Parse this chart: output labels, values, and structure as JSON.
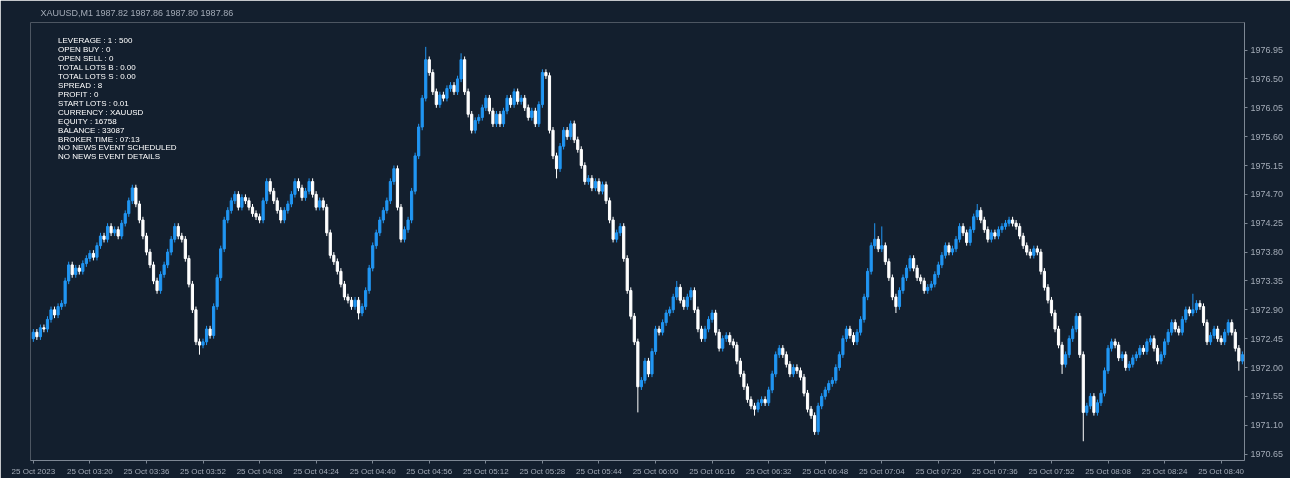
{
  "chart_data": {
    "type": "candlestick",
    "title": "XAUUSD,M1  1987.82 1987.86 1987.80 1987.86",
    "ylim": [
      1970.55,
      1977.38
    ],
    "yticks": [
      1970.65,
      {
        "value": 1971.1,
        "label": "1971.10"
      },
      1971.55,
      {
        "value": 1972.0,
        "label": "1972.00"
      },
      1972.45,
      {
        "value": 1972.9,
        "label": "1972.90"
      },
      1973.35,
      {
        "value": 1973.8,
        "label": "1973.80"
      },
      1974.25,
      {
        "value": 1974.7,
        "label": "1974.70"
      },
      1975.15,
      {
        "value": 1975.6,
        "label": "1975.60"
      },
      1976.05,
      {
        "value": 1976.5,
        "label": "1976.50"
      },
      1976.95
    ],
    "annotations": [
      "LEVERAGE : 1 : 500",
      "OPEN BUY : 0",
      "OPEN SELL : 0",
      "TOTAL LOTS B : 0.00",
      "TOTAL LOTS S : 0.00",
      "SPREAD : 8",
      "PROFIT : 0",
      "START LOTS : 0.01",
      "CURRENCY : XAUUSD",
      "EQUITY : 16758",
      "BALANCE : 33087",
      "BROKER TIME : 07:13",
      "NO NEWS EVENT SCHEDULED",
      "NO NEWS EVENT DETAILS"
    ],
    "categories": [
      "25 Oct 2023",
      null,
      null,
      null,
      null,
      null,
      null,
      null,
      null,
      null,
      null,
      null,
      null,
      null,
      null,
      null,
      "25 Oct 03:20",
      null,
      null,
      null,
      null,
      null,
      null,
      null,
      null,
      null,
      null,
      null,
      null,
      null,
      null,
      null,
      "25 Oct 03:36",
      null,
      null,
      null,
      null,
      null,
      null,
      null,
      null,
      null,
      null,
      null,
      null,
      null,
      null,
      null,
      "25 Oct 03:52",
      null,
      null,
      null,
      null,
      null,
      null,
      null,
      null,
      null,
      null,
      null,
      null,
      null,
      null,
      null,
      "25 Oct 04:08",
      null,
      null,
      null,
      null,
      null,
      null,
      null,
      null,
      null,
      null,
      null,
      null,
      null,
      null,
      null,
      "25 Oct 04:24",
      null,
      null,
      null,
      null,
      null,
      null,
      null,
      null,
      null,
      null,
      null,
      null,
      null,
      null,
      null,
      "25 Oct 04:40",
      null,
      null,
      null,
      null,
      null,
      null,
      null,
      null,
      null,
      null,
      null,
      null,
      null,
      null,
      null,
      "25 Oct 04:56",
      null,
      null,
      null,
      null,
      null,
      null,
      null,
      null,
      null,
      null,
      null,
      null,
      null,
      null,
      null,
      "25 Oct 05:12",
      null,
      null,
      null,
      null,
      null,
      null,
      null,
      null,
      null,
      null,
      null,
      null,
      null,
      null,
      null,
      "25 Oct 05:28",
      null,
      null,
      null,
      null,
      null,
      null,
      null,
      null,
      null,
      null,
      null,
      null,
      null,
      null,
      null,
      "25 Oct 05:44",
      null,
      null,
      null,
      null,
      null,
      null,
      null,
      null,
      null,
      null,
      null,
      null,
      null,
      null,
      null,
      "25 Oct 06:00",
      null,
      null,
      null,
      null,
      null,
      null,
      null,
      null,
      null,
      null,
      null,
      null,
      null,
      null,
      null,
      "25 Oct 06:16",
      null,
      null,
      null,
      null,
      null,
      null,
      null,
      null,
      null,
      null,
      null,
      null,
      null,
      null,
      null,
      "25 Oct 06:32",
      null,
      null,
      null,
      null,
      null,
      null,
      null,
      null,
      null,
      null,
      null,
      null,
      null,
      null,
      null,
      "25 Oct 06:48",
      null,
      null,
      null,
      null,
      null,
      null,
      null,
      null,
      null,
      null,
      null,
      null,
      null,
      null,
      null,
      "25 Oct 07:04",
      null,
      null,
      null,
      null,
      null,
      null,
      null,
      null,
      null,
      null,
      null,
      null,
      null,
      null,
      null,
      "25 Oct 07:20",
      null,
      null,
      null,
      null,
      null,
      null,
      null,
      null,
      null,
      null,
      null,
      null,
      null,
      null,
      null,
      "25 Oct 07:36",
      null,
      null,
      null,
      null,
      null,
      null,
      null,
      null,
      null,
      null,
      null,
      null,
      null,
      null,
      null,
      "25 Oct 07:52",
      null,
      null,
      null,
      null,
      null,
      null,
      null,
      null,
      null,
      null,
      null,
      null,
      null,
      null,
      null,
      "25 Oct 08:08",
      null,
      null,
      null,
      null,
      null,
      null,
      null,
      null,
      null,
      null,
      null,
      null,
      null,
      null,
      null,
      "25 Oct 08:24",
      null,
      null,
      null,
      null,
      null,
      null,
      null,
      null,
      null,
      null,
      null,
      null,
      null,
      null,
      null,
      "25 Oct 08:40",
      null,
      null,
      null,
      null,
      null,
      null
    ],
    "ohlc": [
      [
        1972.45,
        1972.6,
        1972.4,
        1972.55
      ],
      [
        1972.55,
        1972.6,
        1972.43,
        1972.48
      ],
      [
        1972.48,
        1972.67,
        1972.43,
        1972.62
      ],
      [
        1972.62,
        1972.67,
        1972.55,
        1972.6
      ],
      [
        1972.6,
        1972.8,
        1972.55,
        1972.75
      ],
      [
        1972.75,
        1972.95,
        1972.7,
        1972.9
      ],
      [
        1972.9,
        1972.95,
        1972.77,
        1972.82
      ],
      [
        1972.82,
        1973.0,
        1972.77,
        1972.95
      ],
      [
        1972.95,
        1973.05,
        1972.9,
        1973.0
      ],
      [
        1973.0,
        1973.4,
        1972.95,
        1973.35
      ],
      [
        1973.35,
        1973.65,
        1973.3,
        1973.6
      ],
      [
        1973.6,
        1973.65,
        1973.4,
        1973.45
      ],
      [
        1973.45,
        1973.6,
        1973.4,
        1973.55
      ],
      [
        1973.55,
        1973.6,
        1973.45,
        1973.5
      ],
      [
        1973.5,
        1973.67,
        1973.45,
        1973.62
      ],
      [
        1973.62,
        1973.75,
        1973.57,
        1973.7
      ],
      [
        1973.7,
        1973.83,
        1973.65,
        1973.78
      ],
      [
        1973.78,
        1973.83,
        1973.67,
        1973.72
      ],
      [
        1973.72,
        1973.95,
        1973.67,
        1973.9
      ],
      [
        1973.9,
        1974.1,
        1973.85,
        1974.05
      ],
      [
        1974.05,
        1974.1,
        1973.95,
        1974.0
      ],
      [
        1974.0,
        1974.25,
        1973.95,
        1974.2
      ],
      [
        1974.2,
        1974.25,
        1974.05,
        1974.1
      ],
      [
        1974.1,
        1974.2,
        1974.05,
        1974.15
      ],
      [
        1974.15,
        1974.2,
        1974.0,
        1974.05
      ],
      [
        1974.05,
        1974.3,
        1974.0,
        1974.25
      ],
      [
        1974.25,
        1974.45,
        1974.2,
        1974.4
      ],
      [
        1974.4,
        1974.65,
        1974.35,
        1974.6
      ],
      [
        1974.6,
        1974.85,
        1974.55,
        1974.8
      ],
      [
        1974.8,
        1974.85,
        1974.5,
        1974.55
      ],
      [
        1974.55,
        1974.6,
        1974.25,
        1974.3
      ],
      [
        1974.3,
        1974.35,
        1974.0,
        1974.05
      ],
      [
        1974.05,
        1974.1,
        1973.75,
        1973.8
      ],
      [
        1973.8,
        1973.85,
        1973.55,
        1973.6
      ],
      [
        1973.6,
        1973.65,
        1973.3,
        1973.35
      ],
      [
        1973.35,
        1973.4,
        1973.15,
        1973.2
      ],
      [
        1973.2,
        1973.5,
        1973.15,
        1973.45
      ],
      [
        1973.45,
        1973.65,
        1973.4,
        1973.6
      ],
      [
        1973.6,
        1973.85,
        1973.55,
        1973.8
      ],
      [
        1973.8,
        1974.05,
        1973.75,
        1974.0
      ],
      [
        1974.0,
        1974.25,
        1973.95,
        1974.2
      ],
      [
        1974.2,
        1974.25,
        1974.0,
        1974.05
      ],
      [
        1974.05,
        1974.1,
        1973.95,
        1974.0
      ],
      [
        1974.0,
        1974.05,
        1973.65,
        1973.7
      ],
      [
        1973.7,
        1973.75,
        1973.25,
        1973.3
      ],
      [
        1973.3,
        1973.35,
        1972.85,
        1972.9
      ],
      [
        1972.9,
        1972.95,
        1972.35,
        1972.4
      ],
      [
        1972.4,
        1972.45,
        1972.2,
        1972.35
      ],
      [
        1972.35,
        1972.45,
        1972.3,
        1972.4
      ],
      [
        1972.4,
        1972.65,
        1972.35,
        1972.6
      ],
      [
        1972.6,
        1972.65,
        1972.45,
        1972.5
      ],
      [
        1972.5,
        1973.0,
        1972.45,
        1972.95
      ],
      [
        1972.95,
        1973.45,
        1972.9,
        1973.4
      ],
      [
        1973.4,
        1973.9,
        1973.35,
        1973.85
      ],
      [
        1973.85,
        1974.35,
        1973.8,
        1974.3
      ],
      [
        1974.3,
        1974.5,
        1974.25,
        1974.45
      ],
      [
        1974.45,
        1974.65,
        1974.4,
        1974.6
      ],
      [
        1974.6,
        1974.75,
        1974.55,
        1974.7
      ],
      [
        1974.7,
        1974.75,
        1974.45,
        1974.5
      ],
      [
        1974.5,
        1974.7,
        1974.45,
        1974.65
      ],
      [
        1974.65,
        1974.7,
        1974.55,
        1974.6
      ],
      [
        1974.6,
        1974.65,
        1974.45,
        1974.5
      ],
      [
        1974.5,
        1974.55,
        1974.35,
        1974.4
      ],
      [
        1974.4,
        1974.45,
        1974.3,
        1974.35
      ],
      [
        1974.35,
        1974.4,
        1974.25,
        1974.3
      ],
      [
        1974.3,
        1974.65,
        1974.25,
        1974.6
      ],
      [
        1974.6,
        1974.95,
        1974.55,
        1974.9
      ],
      [
        1974.9,
        1974.95,
        1974.7,
        1974.75
      ],
      [
        1974.75,
        1974.8,
        1974.55,
        1974.6
      ],
      [
        1974.6,
        1974.65,
        1974.4,
        1974.45
      ],
      [
        1974.45,
        1974.5,
        1974.25,
        1974.3
      ],
      [
        1974.3,
        1974.5,
        1974.25,
        1974.45
      ],
      [
        1974.45,
        1974.6,
        1974.4,
        1974.55
      ],
      [
        1974.55,
        1974.75,
        1974.5,
        1974.7
      ],
      [
        1974.7,
        1974.95,
        1974.65,
        1974.9
      ],
      [
        1974.9,
        1974.95,
        1974.75,
        1974.8
      ],
      [
        1974.8,
        1974.85,
        1974.6,
        1974.65
      ],
      [
        1974.65,
        1974.8,
        1974.6,
        1974.75
      ],
      [
        1974.75,
        1974.95,
        1974.7,
        1974.9
      ],
      [
        1974.9,
        1974.95,
        1974.65,
        1974.7
      ],
      [
        1974.7,
        1974.75,
        1974.45,
        1974.5
      ],
      [
        1974.5,
        1974.65,
        1974.45,
        1974.6
      ],
      [
        1974.6,
        1974.65,
        1974.45,
        1974.5
      ],
      [
        1974.5,
        1974.55,
        1974.05,
        1974.1
      ],
      [
        1974.1,
        1974.15,
        1973.7,
        1973.75
      ],
      [
        1973.75,
        1973.8,
        1973.6,
        1973.65
      ],
      [
        1973.65,
        1973.7,
        1973.45,
        1973.5
      ],
      [
        1973.5,
        1973.55,
        1973.25,
        1973.3
      ],
      [
        1973.3,
        1973.35,
        1973.05,
        1973.1
      ],
      [
        1973.1,
        1973.15,
        1973.0,
        1973.05
      ],
      [
        1973.05,
        1973.1,
        1972.9,
        1972.95
      ],
      [
        1972.95,
        1973.1,
        1972.9,
        1973.05
      ],
      [
        1973.05,
        1973.1,
        1972.75,
        1972.85
      ],
      [
        1972.85,
        1973.0,
        1972.8,
        1972.95
      ],
      [
        1972.95,
        1973.25,
        1972.9,
        1973.2
      ],
      [
        1973.2,
        1973.6,
        1973.15,
        1973.55
      ],
      [
        1973.55,
        1973.95,
        1973.5,
        1973.9
      ],
      [
        1973.9,
        1974.15,
        1973.85,
        1974.1
      ],
      [
        1974.1,
        1974.35,
        1974.05,
        1974.3
      ],
      [
        1974.3,
        1974.5,
        1974.25,
        1974.45
      ],
      [
        1974.45,
        1974.65,
        1974.4,
        1974.6
      ],
      [
        1974.6,
        1974.95,
        1974.55,
        1974.9
      ],
      [
        1974.9,
        1975.15,
        1974.85,
        1975.1
      ],
      [
        1975.1,
        1975.15,
        1974.45,
        1974.5
      ],
      [
        1974.5,
        1974.55,
        1973.95,
        1974.0
      ],
      [
        1974.0,
        1974.2,
        1973.95,
        1974.15
      ],
      [
        1974.15,
        1974.35,
        1974.1,
        1974.3
      ],
      [
        1974.3,
        1974.8,
        1974.25,
        1974.75
      ],
      [
        1974.75,
        1975.35,
        1974.7,
        1975.3
      ],
      [
        1975.3,
        1975.8,
        1975.25,
        1975.75
      ],
      [
        1975.75,
        1976.25,
        1975.7,
        1976.2
      ],
      [
        1976.2,
        1977.0,
        1976.15,
        1976.8
      ],
      [
        1976.8,
        1976.85,
        1976.55,
        1976.6
      ],
      [
        1976.6,
        1976.65,
        1976.25,
        1976.3
      ],
      [
        1976.3,
        1976.35,
        1976.05,
        1976.1
      ],
      [
        1976.1,
        1976.3,
        1976.05,
        1976.25
      ],
      [
        1976.25,
        1976.3,
        1976.15,
        1976.2
      ],
      [
        1976.2,
        1976.4,
        1976.15,
        1976.35
      ],
      [
        1976.35,
        1976.45,
        1976.3,
        1976.4
      ],
      [
        1976.4,
        1976.45,
        1976.25,
        1976.3
      ],
      [
        1976.3,
        1976.55,
        1976.25,
        1976.5
      ],
      [
        1976.5,
        1976.9,
        1976.45,
        1976.8
      ],
      [
        1976.8,
        1976.85,
        1976.25,
        1976.3
      ],
      [
        1976.3,
        1976.35,
        1975.9,
        1975.95
      ],
      [
        1975.95,
        1976.0,
        1975.65,
        1975.7
      ],
      [
        1975.7,
        1975.9,
        1975.65,
        1975.85
      ],
      [
        1975.85,
        1975.95,
        1975.8,
        1975.9
      ],
      [
        1975.9,
        1976.1,
        1975.85,
        1976.05
      ],
      [
        1976.05,
        1976.25,
        1976.0,
        1976.2
      ],
      [
        1976.2,
        1976.25,
        1975.95,
        1976.0
      ],
      [
        1976.0,
        1976.05,
        1975.75,
        1975.8
      ],
      [
        1975.8,
        1976.0,
        1975.75,
        1975.95
      ],
      [
        1975.95,
        1976.0,
        1975.75,
        1975.8
      ],
      [
        1975.8,
        1976.05,
        1975.75,
        1976.0
      ],
      [
        1976.0,
        1976.25,
        1975.95,
        1976.2
      ],
      [
        1976.2,
        1976.25,
        1976.05,
        1976.1
      ],
      [
        1976.1,
        1976.35,
        1976.05,
        1976.3
      ],
      [
        1976.3,
        1976.35,
        1976.1,
        1976.15
      ],
      [
        1976.15,
        1976.25,
        1976.1,
        1976.2
      ],
      [
        1976.2,
        1976.25,
        1976.0,
        1976.05
      ],
      [
        1976.05,
        1976.1,
        1975.85,
        1975.9
      ],
      [
        1975.9,
        1976.05,
        1975.85,
        1976.0
      ],
      [
        1976.0,
        1976.05,
        1975.75,
        1975.8
      ],
      [
        1975.8,
        1976.15,
        1975.75,
        1976.1
      ],
      [
        1976.1,
        1976.65,
        1976.05,
        1976.6
      ],
      [
        1976.6,
        1976.65,
        1976.5,
        1976.55
      ],
      [
        1976.55,
        1976.6,
        1975.65,
        1975.7
      ],
      [
        1975.7,
        1975.75,
        1975.25,
        1975.3
      ],
      [
        1975.3,
        1975.35,
        1974.95,
        1975.1
      ],
      [
        1975.1,
        1975.5,
        1975.05,
        1975.45
      ],
      [
        1975.45,
        1975.75,
        1975.4,
        1975.7
      ],
      [
        1975.7,
        1975.75,
        1975.55,
        1975.6
      ],
      [
        1975.6,
        1975.85,
        1975.55,
        1975.8
      ],
      [
        1975.8,
        1975.85,
        1975.5,
        1975.55
      ],
      [
        1975.55,
        1975.6,
        1975.35,
        1975.4
      ],
      [
        1975.4,
        1975.45,
        1975.1,
        1975.15
      ],
      [
        1975.15,
        1975.2,
        1974.85,
        1974.9
      ],
      [
        1974.9,
        1975.0,
        1974.85,
        1974.95
      ],
      [
        1974.95,
        1975.0,
        1974.75,
        1974.8
      ],
      [
        1974.8,
        1974.95,
        1974.75,
        1974.9
      ],
      [
        1974.9,
        1974.95,
        1974.7,
        1974.75
      ],
      [
        1974.75,
        1974.9,
        1974.7,
        1974.85
      ],
      [
        1974.85,
        1974.9,
        1974.55,
        1974.6
      ],
      [
        1974.6,
        1974.65,
        1974.25,
        1974.3
      ],
      [
        1974.3,
        1974.35,
        1973.95,
        1974.0
      ],
      [
        1974.0,
        1974.15,
        1973.95,
        1974.1
      ],
      [
        1974.1,
        1974.25,
        1974.05,
        1974.2
      ],
      [
        1974.2,
        1974.25,
        1973.65,
        1973.7
      ],
      [
        1973.7,
        1973.75,
        1973.15,
        1973.2
      ],
      [
        1973.2,
        1973.25,
        1972.75,
        1972.8
      ],
      [
        1972.8,
        1972.85,
        1972.35,
        1972.4
      ],
      [
        1972.4,
        1972.45,
        1971.3,
        1971.7
      ],
      [
        1971.7,
        1971.85,
        1971.65,
        1971.8
      ],
      [
        1971.8,
        1972.15,
        1971.75,
        1972.1
      ],
      [
        1972.1,
        1972.15,
        1971.85,
        1971.9
      ],
      [
        1971.9,
        1972.3,
        1971.85,
        1972.25
      ],
      [
        1972.25,
        1972.65,
        1972.2,
        1972.6
      ],
      [
        1972.6,
        1972.65,
        1972.5,
        1972.55
      ],
      [
        1972.55,
        1972.75,
        1972.5,
        1972.7
      ],
      [
        1972.7,
        1972.9,
        1972.65,
        1972.85
      ],
      [
        1972.85,
        1972.95,
        1972.8,
        1972.9
      ],
      [
        1972.9,
        1973.15,
        1972.85,
        1973.1
      ],
      [
        1973.1,
        1973.35,
        1973.05,
        1973.25
      ],
      [
        1973.25,
        1973.3,
        1973.0,
        1973.05
      ],
      [
        1973.05,
        1973.1,
        1972.9,
        1972.95
      ],
      [
        1972.95,
        1973.15,
        1972.9,
        1973.1
      ],
      [
        1973.1,
        1973.25,
        1973.05,
        1973.2
      ],
      [
        1973.2,
        1973.25,
        1972.85,
        1972.9
      ],
      [
        1972.9,
        1972.95,
        1972.55,
        1972.6
      ],
      [
        1972.6,
        1972.65,
        1972.4,
        1972.45
      ],
      [
        1972.45,
        1972.65,
        1972.4,
        1972.6
      ],
      [
        1972.6,
        1972.8,
        1972.55,
        1972.75
      ],
      [
        1972.75,
        1972.9,
        1972.7,
        1972.85
      ],
      [
        1972.85,
        1972.9,
        1972.5,
        1972.55
      ],
      [
        1972.55,
        1972.6,
        1972.25,
        1972.3
      ],
      [
        1972.3,
        1972.5,
        1972.25,
        1972.45
      ],
      [
        1972.45,
        1972.55,
        1972.4,
        1972.5
      ],
      [
        1972.5,
        1972.55,
        1972.35,
        1972.4
      ],
      [
        1972.4,
        1972.45,
        1972.3,
        1972.35
      ],
      [
        1972.35,
        1972.4,
        1972.05,
        1972.1
      ],
      [
        1972.1,
        1972.15,
        1971.85,
        1971.9
      ],
      [
        1971.9,
        1971.95,
        1971.65,
        1971.7
      ],
      [
        1971.7,
        1971.75,
        1971.45,
        1971.5
      ],
      [
        1971.5,
        1971.55,
        1971.35,
        1971.4
      ],
      [
        1971.4,
        1971.45,
        1971.25,
        1971.35
      ],
      [
        1971.35,
        1971.5,
        1971.3,
        1971.45
      ],
      [
        1971.45,
        1971.55,
        1971.4,
        1971.5
      ],
      [
        1971.5,
        1971.55,
        1971.4,
        1971.45
      ],
      [
        1971.45,
        1971.7,
        1971.4,
        1971.65
      ],
      [
        1971.65,
        1971.95,
        1971.6,
        1971.9
      ],
      [
        1971.9,
        1972.25,
        1971.85,
        1972.2
      ],
      [
        1972.2,
        1972.35,
        1972.15,
        1972.3
      ],
      [
        1972.3,
        1972.35,
        1972.15,
        1972.2
      ],
      [
        1972.2,
        1972.25,
        1972.0,
        1972.05
      ],
      [
        1972.05,
        1972.1,
        1971.85,
        1971.9
      ],
      [
        1971.9,
        1972.05,
        1971.85,
        1972.0
      ],
      [
        1972.0,
        1972.05,
        1971.9,
        1971.95
      ],
      [
        1971.95,
        1972.0,
        1971.8,
        1971.85
      ],
      [
        1971.85,
        1971.9,
        1971.55,
        1971.6
      ],
      [
        1971.6,
        1971.65,
        1971.3,
        1971.35
      ],
      [
        1971.35,
        1971.4,
        1971.2,
        1971.25
      ],
      [
        1971.25,
        1971.3,
        1970.95,
        1971.0
      ],
      [
        1971.0,
        1971.45,
        1970.95,
        1971.4
      ],
      [
        1971.4,
        1971.6,
        1971.35,
        1971.55
      ],
      [
        1971.55,
        1971.7,
        1971.5,
        1971.65
      ],
      [
        1971.65,
        1971.8,
        1971.6,
        1971.75
      ],
      [
        1971.75,
        1971.85,
        1971.7,
        1971.8
      ],
      [
        1971.8,
        1972.05,
        1971.75,
        1972.0
      ],
      [
        1972.0,
        1972.25,
        1971.95,
        1972.2
      ],
      [
        1972.2,
        1972.5,
        1972.15,
        1972.45
      ],
      [
        1972.45,
        1972.65,
        1972.4,
        1972.6
      ],
      [
        1972.6,
        1972.65,
        1972.45,
        1972.5
      ],
      [
        1972.5,
        1972.55,
        1972.35,
        1972.4
      ],
      [
        1972.4,
        1972.6,
        1972.35,
        1972.55
      ],
      [
        1972.55,
        1972.8,
        1972.5,
        1972.75
      ],
      [
        1972.75,
        1973.15,
        1972.7,
        1973.1
      ],
      [
        1973.1,
        1973.55,
        1973.05,
        1973.5
      ],
      [
        1973.5,
        1973.95,
        1973.45,
        1973.9
      ],
      [
        1973.9,
        1974.25,
        1973.85,
        1974.0
      ],
      [
        1974.0,
        1974.05,
        1973.8,
        1973.85
      ],
      [
        1973.85,
        1974.2,
        1973.8,
        1973.9
      ],
      [
        1973.9,
        1973.95,
        1973.6,
        1973.65
      ],
      [
        1973.65,
        1973.7,
        1973.35,
        1973.4
      ],
      [
        1973.4,
        1973.45,
        1973.05,
        1973.1
      ],
      [
        1973.1,
        1973.15,
        1972.85,
        1972.95
      ],
      [
        1972.95,
        1973.25,
        1972.9,
        1973.2
      ],
      [
        1973.2,
        1973.45,
        1973.15,
        1973.4
      ],
      [
        1973.4,
        1973.6,
        1973.35,
        1973.55
      ],
      [
        1973.55,
        1973.75,
        1973.5,
        1973.7
      ],
      [
        1973.7,
        1973.75,
        1973.5,
        1973.55
      ],
      [
        1973.55,
        1973.6,
        1973.35,
        1973.4
      ],
      [
        1973.4,
        1973.45,
        1973.3,
        1973.35
      ],
      [
        1973.35,
        1973.4,
        1973.15,
        1973.2
      ],
      [
        1973.2,
        1973.3,
        1973.15,
        1973.25
      ],
      [
        1973.25,
        1973.35,
        1973.2,
        1973.3
      ],
      [
        1973.3,
        1973.5,
        1973.25,
        1973.45
      ],
      [
        1973.45,
        1973.65,
        1973.4,
        1973.6
      ],
      [
        1973.6,
        1973.8,
        1973.55,
        1973.75
      ],
      [
        1973.75,
        1973.95,
        1973.7,
        1973.9
      ],
      [
        1973.9,
        1973.95,
        1973.75,
        1973.8
      ],
      [
        1973.8,
        1973.9,
        1973.75,
        1973.85
      ],
      [
        1973.85,
        1974.05,
        1973.8,
        1974.0
      ],
      [
        1974.0,
        1974.25,
        1973.95,
        1974.2
      ],
      [
        1974.2,
        1974.25,
        1974.05,
        1974.1
      ],
      [
        1974.1,
        1974.15,
        1973.9,
        1973.95
      ],
      [
        1973.95,
        1974.2,
        1973.9,
        1974.15
      ],
      [
        1974.15,
        1974.4,
        1974.1,
        1974.35
      ],
      [
        1974.35,
        1974.55,
        1974.3,
        1974.45
      ],
      [
        1974.45,
        1974.5,
        1974.25,
        1974.3
      ],
      [
        1974.3,
        1974.35,
        1974.1,
        1974.15
      ],
      [
        1974.15,
        1974.2,
        1973.95,
        1974.0
      ],
      [
        1974.0,
        1974.15,
        1973.95,
        1974.1
      ],
      [
        1974.1,
        1974.15,
        1974.0,
        1974.05
      ],
      [
        1974.05,
        1974.2,
        1974.0,
        1974.15
      ],
      [
        1974.15,
        1974.25,
        1974.1,
        1974.2
      ],
      [
        1974.2,
        1974.3,
        1974.15,
        1974.25
      ],
      [
        1974.25,
        1974.35,
        1974.2,
        1974.3
      ],
      [
        1974.3,
        1974.35,
        1974.2,
        1974.25
      ],
      [
        1974.25,
        1974.3,
        1974.15,
        1974.2
      ],
      [
        1974.2,
        1974.25,
        1974.0,
        1974.05
      ],
      [
        1974.05,
        1974.1,
        1973.85,
        1973.9
      ],
      [
        1973.9,
        1973.95,
        1973.75,
        1973.8
      ],
      [
        1973.8,
        1973.85,
        1973.7,
        1973.75
      ],
      [
        1973.75,
        1973.9,
        1973.7,
        1973.85
      ],
      [
        1973.85,
        1973.9,
        1973.75,
        1973.8
      ],
      [
        1973.8,
        1973.85,
        1973.45,
        1973.5
      ],
      [
        1973.5,
        1973.55,
        1973.2,
        1973.25
      ],
      [
        1973.25,
        1973.3,
        1973.0,
        1973.05
      ],
      [
        1973.05,
        1973.1,
        1972.8,
        1972.85
      ],
      [
        1972.85,
        1972.9,
        1972.55,
        1972.6
      ],
      [
        1972.6,
        1972.65,
        1972.3,
        1972.35
      ],
      [
        1972.35,
        1972.4,
        1971.9,
        1972.05
      ],
      [
        1972.05,
        1972.25,
        1972.0,
        1972.2
      ],
      [
        1972.2,
        1972.5,
        1972.15,
        1972.45
      ],
      [
        1972.45,
        1972.65,
        1972.4,
        1972.6
      ],
      [
        1972.6,
        1972.85,
        1972.55,
        1972.8
      ],
      [
        1972.8,
        1972.85,
        1972.15,
        1972.2
      ],
      [
        1972.2,
        1972.25,
        1970.85,
        1971.3
      ],
      [
        1971.3,
        1971.45,
        1971.25,
        1971.4
      ],
      [
        1971.4,
        1971.6,
        1971.35,
        1971.55
      ],
      [
        1971.55,
        1971.6,
        1971.25,
        1971.3
      ],
      [
        1971.3,
        1971.5,
        1971.25,
        1971.45
      ],
      [
        1971.45,
        1971.65,
        1971.4,
        1971.6
      ],
      [
        1971.6,
        1972.0,
        1971.55,
        1971.95
      ],
      [
        1971.95,
        1972.35,
        1971.9,
        1972.3
      ],
      [
        1972.3,
        1972.45,
        1972.25,
        1972.4
      ],
      [
        1972.4,
        1972.45,
        1972.3,
        1972.35
      ],
      [
        1972.35,
        1972.4,
        1972.1,
        1972.15
      ],
      [
        1972.15,
        1972.25,
        1972.1,
        1972.2
      ],
      [
        1972.2,
        1972.25,
        1971.95,
        1972.0
      ],
      [
        1972.0,
        1972.1,
        1971.95,
        1972.05
      ],
      [
        1972.05,
        1972.2,
        1972.0,
        1972.15
      ],
      [
        1972.15,
        1972.25,
        1972.1,
        1972.2
      ],
      [
        1972.2,
        1972.35,
        1972.15,
        1972.3
      ],
      [
        1972.3,
        1972.35,
        1972.2,
        1972.25
      ],
      [
        1972.25,
        1972.45,
        1972.2,
        1972.4
      ],
      [
        1972.4,
        1972.5,
        1972.35,
        1972.45
      ],
      [
        1972.45,
        1972.5,
        1972.25,
        1972.3
      ],
      [
        1972.3,
        1972.35,
        1972.05,
        1972.1
      ],
      [
        1972.1,
        1972.25,
        1972.05,
        1972.2
      ],
      [
        1972.2,
        1972.45,
        1972.15,
        1972.4
      ],
      [
        1972.4,
        1972.6,
        1972.35,
        1972.55
      ],
      [
        1972.55,
        1972.75,
        1972.5,
        1972.7
      ],
      [
        1972.7,
        1972.75,
        1972.55,
        1972.6
      ],
      [
        1972.6,
        1972.65,
        1972.5,
        1972.55
      ],
      [
        1972.55,
        1972.8,
        1972.5,
        1972.75
      ],
      [
        1972.75,
        1972.95,
        1972.7,
        1972.9
      ],
      [
        1972.9,
        1972.95,
        1972.8,
        1972.85
      ],
      [
        1972.85,
        1973.15,
        1972.8,
        1972.9
      ],
      [
        1972.9,
        1973.05,
        1972.85,
        1973.0
      ],
      [
        1973.0,
        1973.05,
        1972.9,
        1972.95
      ],
      [
        1972.95,
        1973.0,
        1972.65,
        1972.7
      ],
      [
        1972.7,
        1972.75,
        1972.35,
        1972.4
      ],
      [
        1972.4,
        1972.55,
        1972.35,
        1972.5
      ],
      [
        1972.5,
        1972.65,
        1972.45,
        1972.6
      ],
      [
        1972.6,
        1972.65,
        1972.4,
        1972.45
      ],
      [
        1972.45,
        1972.5,
        1972.35,
        1972.4
      ],
      [
        1972.4,
        1972.6,
        1972.35,
        1972.55
      ],
      [
        1972.55,
        1972.75,
        1972.5,
        1972.7
      ],
      [
        1972.7,
        1972.75,
        1972.5,
        1972.55
      ],
      [
        1972.55,
        1972.6,
        1972.25,
        1972.3
      ],
      [
        1972.3,
        1972.35,
        1971.95,
        1972.1
      ],
      [
        1972.1,
        1972.25,
        1972.05,
        1972.2
      ]
    ]
  }
}
